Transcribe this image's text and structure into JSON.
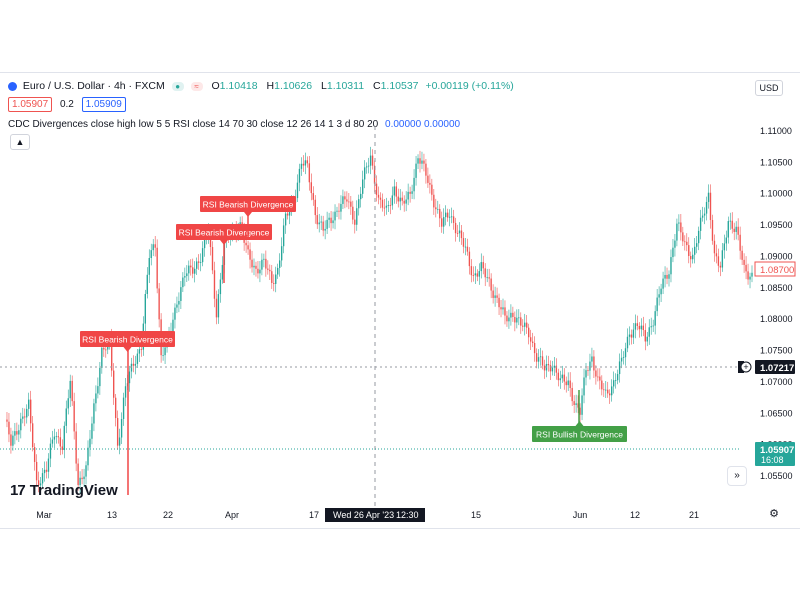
{
  "header": {
    "symbol": "Euro / U.S. Dollar · 4h · FXCM",
    "open_label": "O",
    "open": "1.10418",
    "high_label": "H",
    "high": "1.10626",
    "low_label": "L",
    "low": "1.10311",
    "close_label": "C",
    "close": "1.10537",
    "change": "+0.00119 (+0.11%)"
  },
  "quote": {
    "bid": "1.05907",
    "spread": "0.2",
    "ask": "1.05909"
  },
  "indicator": {
    "text": "CDC Divergences close high low 5 5 RSI close 14 70 30 close 12 26 14 1 3 d 80 20",
    "values": "0.00000  0.00000"
  },
  "currency_button": "USD",
  "watermark": "TradingView",
  "crosshair_date": "Wed 26 Apr '23",
  "crosshair_time": "12:30",
  "crosshair_price": "1.07217",
  "current_price": "1.05907",
  "countdown": "16:08",
  "ref_price": "1.08700",
  "colors": {
    "up": "#26a69a",
    "down": "#ef5350",
    "bear_label": "#f04646",
    "bull_label": "#43a047"
  },
  "chart_data": {
    "type": "candlestick",
    "y_ticks": [
      "1.05500",
      "1.06000",
      "1.06500",
      "1.07000",
      "1.07500",
      "1.08000",
      "1.08500",
      "1.09000",
      "1.09500",
      "1.10000",
      "1.10500",
      "1.11000"
    ],
    "ylim": [
      1.0525,
      1.114
    ],
    "x_ticks": [
      "Mar",
      "13",
      "Apr",
      "17",
      "15",
      "Jun",
      "21"
    ],
    "x_ticks_b": [
      "22",
      "12"
    ],
    "series": [
      {
        "keypoints": [
          [
            0,
            1.064
          ],
          [
            3,
            1.06
          ],
          [
            8,
            1.064
          ],
          [
            12,
            1.066
          ],
          [
            16,
            1.054
          ],
          [
            21,
            1.056
          ],
          [
            25,
            1.062
          ],
          [
            29,
            1.06
          ],
          [
            33,
            1.07
          ],
          [
            37,
            1.054
          ],
          [
            41,
            1.056
          ],
          [
            45,
            1.066
          ],
          [
            49,
            1.075
          ],
          [
            53,
            1.076
          ],
          [
            57,
            1.06
          ],
          [
            61,
            1.069
          ],
          [
            65,
            1.073
          ],
          [
            69,
            1.076
          ],
          [
            73,
            1.09
          ],
          [
            76,
            1.092
          ],
          [
            79,
            1.074
          ],
          [
            83,
            1.077
          ],
          [
            87,
            1.083
          ],
          [
            91,
            1.087
          ],
          [
            95,
            1.088
          ],
          [
            99,
            1.09
          ],
          [
            103,
            1.094
          ],
          [
            107,
            1.081
          ],
          [
            111,
            1.092
          ],
          [
            115,
            1.094
          ],
          [
            119,
            1.095
          ],
          [
            123,
            1.09
          ],
          [
            127,
            1.088
          ],
          [
            131,
            1.089
          ],
          [
            135,
            1.086
          ],
          [
            138,
            1.088
          ],
          [
            142,
            1.096
          ],
          [
            146,
            1.099
          ],
          [
            150,
            1.105
          ],
          [
            153,
            1.104
          ],
          [
            157,
            1.097
          ],
          [
            161,
            1.094
          ],
          [
            165,
            1.096
          ],
          [
            169,
            1.098
          ],
          [
            173,
            1.099
          ],
          [
            177,
            1.096
          ],
          [
            181,
            1.102
          ],
          [
            185,
            1.106
          ],
          [
            189,
            1.099
          ],
          [
            193,
            1.097
          ],
          [
            197,
            1.101
          ],
          [
            201,
            1.098
          ],
          [
            205,
            1.1
          ],
          [
            209,
            1.106
          ],
          [
            213,
            1.103
          ],
          [
            217,
            1.099
          ],
          [
            221,
            1.095
          ],
          [
            225,
            1.097
          ],
          [
            229,
            1.094
          ],
          [
            233,
            1.091
          ],
          [
            237,
            1.087
          ],
          [
            241,
            1.088
          ],
          [
            245,
            1.086
          ],
          [
            249,
            1.083
          ],
          [
            253,
            1.08
          ],
          [
            257,
            1.081
          ],
          [
            261,
            1.079
          ],
          [
            265,
            1.078
          ],
          [
            269,
            1.074
          ],
          [
            273,
            1.072
          ],
          [
            277,
            1.073
          ],
          [
            281,
            1.07
          ],
          [
            285,
            1.07
          ],
          [
            289,
            1.066
          ],
          [
            291,
            1.065
          ],
          [
            294,
            1.072
          ],
          [
            297,
            1.074
          ],
          [
            300,
            1.07
          ],
          [
            304,
            1.068
          ],
          [
            308,
            1.07
          ],
          [
            312,
            1.073
          ],
          [
            316,
            1.078
          ],
          [
            320,
            1.079
          ],
          [
            324,
            1.077
          ],
          [
            328,
            1.08
          ],
          [
            332,
            1.085
          ],
          [
            336,
            1.088
          ],
          [
            340,
            1.095
          ],
          [
            344,
            1.092
          ],
          [
            348,
            1.09
          ],
          [
            352,
            1.095
          ],
          [
            356,
            1.1
          ],
          [
            359,
            1.09
          ],
          [
            362,
            1.088
          ],
          [
            366,
            1.096
          ],
          [
            370,
            1.094
          ],
          [
            374,
            1.088
          ],
          [
            378,
            1.087
          ]
        ]
      }
    ],
    "annotations": [
      {
        "text": "RSI Bearish Divergence",
        "type": "bearish"
      },
      {
        "text": "RSI Bearish Divergence",
        "type": "bearish"
      },
      {
        "text": "RSI Bearish Divergence",
        "type": "bearish"
      },
      {
        "text": "RSI Bullish Divergence",
        "type": "bullish"
      }
    ],
    "grid": false,
    "dotted_lines": [
      1.07217,
      1.05907
    ]
  }
}
